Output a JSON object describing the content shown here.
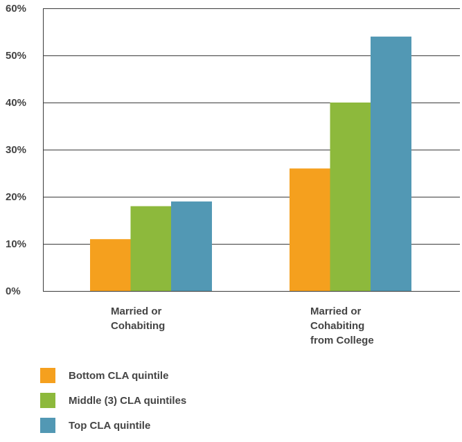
{
  "chart_data": {
    "type": "bar",
    "title": "",
    "xlabel": "",
    "ylabel": "",
    "ylim": [
      0,
      60
    ],
    "yticks": [
      "0%",
      "10%",
      "20%",
      "30%",
      "40%",
      "50%",
      "60%"
    ],
    "grid": true,
    "legend_position": "bottom-left",
    "categories": [
      [
        "Married or",
        "Cohabiting"
      ],
      [
        "Married or",
        "Cohabiting",
        "from College"
      ]
    ],
    "series": [
      {
        "name": "Bottom CLA quintile",
        "color": "#f5a01e",
        "values": [
          11,
          26
        ]
      },
      {
        "name": "Middle (3) CLA quintiles",
        "color": "#8db93c",
        "values": [
          18,
          40
        ]
      },
      {
        "name": "Top CLA quintile",
        "color": "#5298b4",
        "values": [
          19,
          54
        ]
      }
    ]
  }
}
